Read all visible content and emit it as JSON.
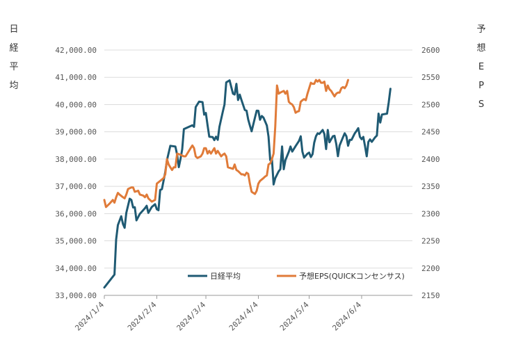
{
  "chart_data": {
    "type": "line",
    "left_axis_label": "日経平均",
    "right_axis_label": "予想EPS",
    "left_axis": {
      "min": 33000,
      "max": 42000,
      "step": 1000,
      "ticks": [
        "33,000.00",
        "34,000.00",
        "35,000.00",
        "36,000.00",
        "37,000.00",
        "38,000.00",
        "39,000.00",
        "40,000.00",
        "41,000.00",
        "42,000.00"
      ]
    },
    "right_axis": {
      "min": 2150,
      "max": 2600,
      "step": 50,
      "ticks": [
        "2150",
        "2200",
        "2250",
        "2300",
        "2350",
        "2400",
        "2450",
        "2500",
        "2550",
        "2600"
      ]
    },
    "x_ticks": [
      "2024/1/4",
      "2024/2/4",
      "2024/3/4",
      "2024/4/4",
      "2024/5/4",
      "2024/6/4"
    ],
    "x_range": [
      0,
      182
    ],
    "x_tick_days": [
      0,
      31,
      60,
      91,
      121,
      152
    ],
    "grid": "horizontal",
    "legend_position": "bottom-center",
    "series": [
      {
        "name": "日経平均",
        "axis": "left",
        "color": "#1f5a73",
        "points": [
          [
            0,
            33288
          ],
          [
            6,
            33763
          ],
          [
            7,
            35049
          ],
          [
            8,
            35577
          ],
          [
            10,
            35901
          ],
          [
            11,
            35619
          ],
          [
            12,
            35477
          ],
          [
            13,
            36026
          ],
          [
            15,
            36547
          ],
          [
            16,
            36500
          ],
          [
            17,
            36225
          ],
          [
            18,
            36235
          ],
          [
            19,
            35751
          ],
          [
            21,
            35990
          ],
          [
            24,
            36197
          ],
          [
            25,
            36286
          ],
          [
            26,
            36026
          ],
          [
            28,
            36240
          ],
          [
            30,
            36345
          ],
          [
            31,
            36158
          ],
          [
            32,
            36123
          ],
          [
            33,
            36864
          ],
          [
            34,
            36897
          ],
          [
            36,
            37519
          ],
          [
            37,
            37963
          ],
          [
            39,
            38487
          ],
          [
            42,
            38459
          ],
          [
            43,
            38157
          ],
          [
            44,
            37704
          ],
          [
            45,
            38000
          ],
          [
            46,
            38363
          ],
          [
            47,
            39098
          ],
          [
            52,
            39240
          ],
          [
            53,
            39182
          ],
          [
            54,
            39910
          ],
          [
            56,
            40109
          ],
          [
            58,
            40087
          ],
          [
            59,
            39628
          ],
          [
            60,
            39690
          ],
          [
            61,
            39232
          ],
          [
            62,
            38820
          ],
          [
            64,
            38807
          ],
          [
            65,
            38695
          ],
          [
            66,
            38820
          ],
          [
            67,
            38707
          ],
          [
            68,
            39180
          ],
          [
            70,
            39740
          ],
          [
            71,
            40004
          ],
          [
            72,
            40815
          ],
          [
            74,
            40888
          ],
          [
            76,
            40398
          ],
          [
            77,
            40369
          ],
          [
            78,
            40762
          ],
          [
            79,
            40168
          ],
          [
            80,
            40366
          ],
          [
            81,
            40168
          ],
          [
            83,
            39803
          ],
          [
            84,
            39773
          ],
          [
            85,
            39451
          ],
          [
            86,
            39232
          ],
          [
            87,
            39019
          ],
          [
            89,
            39523
          ],
          [
            90,
            39773
          ],
          [
            91,
            39772
          ],
          [
            92,
            39442
          ],
          [
            93,
            39581
          ],
          [
            94,
            39524
          ],
          [
            96,
            39232
          ],
          [
            97,
            38821
          ],
          [
            98,
            37963
          ],
          [
            99,
            38000
          ],
          [
            100,
            37068
          ],
          [
            101,
            37300
          ],
          [
            103,
            37552
          ],
          [
            104,
            37628
          ],
          [
            105,
            38460
          ],
          [
            106,
            37628
          ],
          [
            107,
            37961
          ],
          [
            109,
            38270
          ],
          [
            110,
            38460
          ],
          [
            111,
            38274
          ],
          [
            113,
            38474
          ],
          [
            115,
            38666
          ],
          [
            116,
            38835
          ],
          [
            117,
            38274
          ],
          [
            118,
            38056
          ],
          [
            120,
            38199
          ],
          [
            121,
            38236
          ],
          [
            122,
            38073
          ],
          [
            123,
            38179
          ],
          [
            124,
            38602
          ],
          [
            125,
            38835
          ],
          [
            126,
            38946
          ],
          [
            127,
            38920
          ],
          [
            129,
            39069
          ],
          [
            130,
            38920
          ],
          [
            131,
            38366
          ],
          [
            132,
            39069
          ],
          [
            133,
            38617
          ],
          [
            135,
            38836
          ],
          [
            136,
            38855
          ],
          [
            137,
            38554
          ],
          [
            138,
            38103
          ],
          [
            139,
            38500
          ],
          [
            141,
            38804
          ],
          [
            142,
            38946
          ],
          [
            143,
            38837
          ],
          [
            144,
            38488
          ],
          [
            145,
            38703
          ],
          [
            146,
            38703
          ],
          [
            148,
            38947
          ],
          [
            149,
            39038
          ],
          [
            150,
            39134
          ],
          [
            151,
            38815
          ],
          [
            152,
            38730
          ],
          [
            153,
            38813
          ],
          [
            154,
            38482
          ],
          [
            155,
            38102
          ],
          [
            156,
            38633
          ],
          [
            157,
            38720
          ],
          [
            158,
            38633
          ],
          [
            160,
            38804
          ],
          [
            161,
            38862
          ],
          [
            162,
            39667
          ],
          [
            163,
            39342
          ],
          [
            164,
            39633
          ],
          [
            167,
            39667
          ],
          [
            168,
            40074
          ],
          [
            169,
            40580
          ]
        ]
      },
      {
        "name": "予想EPS(QUICKコンセンサス)",
        "axis": "right",
        "color": "#e07b39",
        "points": [
          [
            0,
            2325
          ],
          [
            1,
            2312
          ],
          [
            3,
            2318
          ],
          [
            5,
            2325
          ],
          [
            6,
            2320
          ],
          [
            7,
            2330
          ],
          [
            8,
            2338
          ],
          [
            9,
            2335
          ],
          [
            11,
            2330
          ],
          [
            12,
            2328
          ],
          [
            13,
            2335
          ],
          [
            14,
            2345
          ],
          [
            16,
            2348
          ],
          [
            17,
            2348
          ],
          [
            18,
            2340
          ],
          [
            20,
            2342
          ],
          [
            21,
            2335
          ],
          [
            23,
            2333
          ],
          [
            24,
            2330
          ],
          [
            25,
            2335
          ],
          [
            26,
            2328
          ],
          [
            28,
            2322
          ],
          [
            30,
            2325
          ],
          [
            31,
            2355
          ],
          [
            33,
            2360
          ],
          [
            35,
            2365
          ],
          [
            36,
            2372
          ],
          [
            37,
            2400
          ],
          [
            38,
            2390
          ],
          [
            39,
            2385
          ],
          [
            40,
            2380
          ],
          [
            41,
            2385
          ],
          [
            42,
            2385
          ],
          [
            43,
            2410
          ],
          [
            45,
            2408
          ],
          [
            47,
            2405
          ],
          [
            48,
            2405
          ],
          [
            49,
            2410
          ],
          [
            51,
            2420
          ],
          [
            52,
            2425
          ],
          [
            53,
            2420
          ],
          [
            54,
            2405
          ],
          [
            55,
            2402
          ],
          [
            57,
            2405
          ],
          [
            58,
            2410
          ],
          [
            59,
            2420
          ],
          [
            60,
            2420
          ],
          [
            61,
            2410
          ],
          [
            62,
            2415
          ],
          [
            63,
            2410
          ],
          [
            65,
            2420
          ],
          [
            66,
            2410
          ],
          [
            67,
            2415
          ],
          [
            68,
            2410
          ],
          [
            69,
            2405
          ],
          [
            70,
            2408
          ],
          [
            71,
            2410
          ],
          [
            72,
            2405
          ],
          [
            73,
            2385
          ],
          [
            75,
            2383
          ],
          [
            76,
            2382
          ],
          [
            77,
            2390
          ],
          [
            78,
            2380
          ],
          [
            79,
            2378
          ],
          [
            80,
            2375
          ],
          [
            81,
            2372
          ],
          [
            82,
            2372
          ],
          [
            83,
            2370
          ],
          [
            84,
            2375
          ],
          [
            85,
            2373
          ],
          [
            86,
            2355
          ],
          [
            87,
            2340
          ],
          [
            89,
            2336
          ],
          [
            90,
            2342
          ],
          [
            91,
            2355
          ],
          [
            92,
            2360
          ],
          [
            94,
            2365
          ],
          [
            95,
            2368
          ],
          [
            96,
            2370
          ],
          [
            97,
            2390
          ],
          [
            98,
            2392
          ],
          [
            99,
            2400
          ],
          [
            100,
            2410
          ],
          [
            101,
            2460
          ],
          [
            102,
            2535
          ],
          [
            103,
            2520
          ],
          [
            104,
            2522
          ],
          [
            106,
            2525
          ],
          [
            107,
            2520
          ],
          [
            108,
            2525
          ],
          [
            109,
            2505
          ],
          [
            110,
            2502
          ],
          [
            111,
            2500
          ],
          [
            112,
            2495
          ],
          [
            113,
            2485
          ],
          [
            114,
            2487
          ],
          [
            115,
            2488
          ],
          [
            116,
            2505
          ],
          [
            117,
            2508
          ],
          [
            118,
            2510
          ],
          [
            119,
            2508
          ],
          [
            120,
            2520
          ],
          [
            122,
            2540
          ],
          [
            123,
            2538
          ],
          [
            124,
            2538
          ],
          [
            125,
            2545
          ],
          [
            126,
            2542
          ],
          [
            127,
            2545
          ],
          [
            128,
            2540
          ],
          [
            129,
            2540
          ],
          [
            130,
            2542
          ],
          [
            131,
            2525
          ],
          [
            132,
            2535
          ],
          [
            133,
            2528
          ],
          [
            134,
            2525
          ],
          [
            135,
            2520
          ],
          [
            136,
            2515
          ],
          [
            137,
            2520
          ],
          [
            138,
            2522
          ],
          [
            139,
            2522
          ],
          [
            140,
            2530
          ],
          [
            141,
            2532
          ],
          [
            142,
            2530
          ],
          [
            143,
            2535
          ],
          [
            144,
            2545
          ]
        ]
      }
    ]
  }
}
